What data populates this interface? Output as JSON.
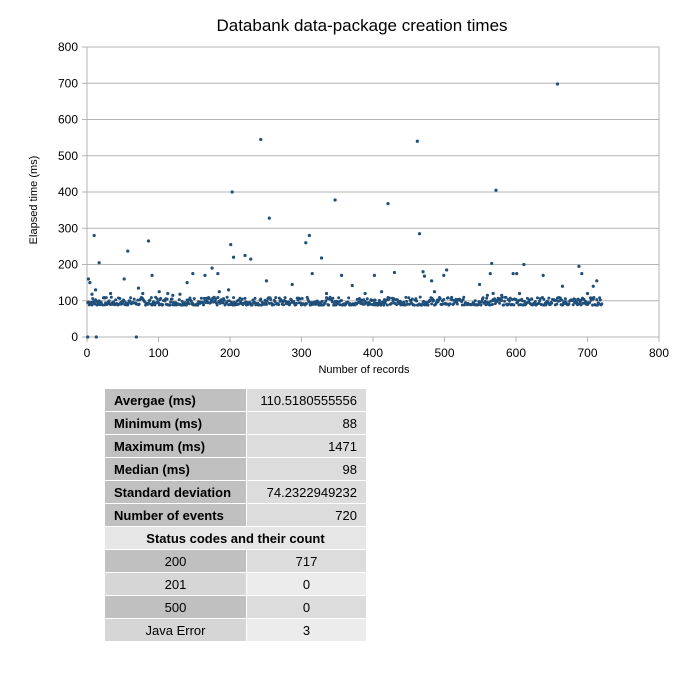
{
  "chart_data": {
    "type": "scatter",
    "title": "Databank data-package creation times",
    "xlabel": "Number of records",
    "ylabel": "Elapsed time (ms)",
    "xlim": [
      0,
      800
    ],
    "ylim": [
      0,
      800
    ],
    "xticks": [
      0,
      100,
      200,
      300,
      400,
      500,
      600,
      700,
      800
    ],
    "yticks": [
      0,
      100,
      200,
      300,
      400,
      500,
      600,
      700,
      800
    ],
    "grid": true,
    "legend": "none",
    "color": "#1f4e79",
    "baseline": {
      "x_range": [
        1,
        720
      ],
      "typical_ms": [
        88,
        110
      ]
    },
    "outliers": [
      [
        1,
        0
      ],
      [
        13,
        0
      ],
      [
        69,
        0
      ],
      [
        2,
        160
      ],
      [
        4,
        150
      ],
      [
        7,
        118
      ],
      [
        10,
        280
      ],
      [
        12,
        130
      ],
      [
        17,
        205
      ],
      [
        25,
        108
      ],
      [
        33,
        120
      ],
      [
        52,
        160
      ],
      [
        57,
        237
      ],
      [
        72,
        135
      ],
      [
        78,
        120
      ],
      [
        86,
        265
      ],
      [
        91,
        170
      ],
      [
        101,
        125
      ],
      [
        113,
        120
      ],
      [
        120,
        115
      ],
      [
        130,
        118
      ],
      [
        140,
        150
      ],
      [
        148,
        175
      ],
      [
        165,
        170
      ],
      [
        175,
        190
      ],
      [
        183,
        175
      ],
      [
        185,
        125
      ],
      [
        198,
        130
      ],
      [
        201,
        255
      ],
      [
        203,
        400
      ],
      [
        205,
        220
      ],
      [
        221,
        225
      ],
      [
        229,
        215
      ],
      [
        243,
        545
      ],
      [
        251,
        155
      ],
      [
        255,
        328
      ],
      [
        287,
        145
      ],
      [
        306,
        260
      ],
      [
        311,
        280
      ],
      [
        315,
        175
      ],
      [
        328,
        218
      ],
      [
        335,
        120
      ],
      [
        347,
        378
      ],
      [
        356,
        170
      ],
      [
        371,
        142
      ],
      [
        389,
        120
      ],
      [
        402,
        170
      ],
      [
        412,
        125
      ],
      [
        421,
        368
      ],
      [
        430,
        178
      ],
      [
        462,
        540
      ],
      [
        465,
        285
      ],
      [
        470,
        180
      ],
      [
        472,
        168
      ],
      [
        482,
        155
      ],
      [
        486,
        125
      ],
      [
        499,
        170
      ],
      [
        503,
        185
      ],
      [
        549,
        145
      ],
      [
        560,
        115
      ],
      [
        564,
        175
      ],
      [
        566,
        203
      ],
      [
        568,
        120
      ],
      [
        572,
        405
      ],
      [
        580,
        115
      ],
      [
        596,
        175
      ],
      [
        601,
        175
      ],
      [
        605,
        120
      ],
      [
        611,
        200
      ],
      [
        622,
        105
      ],
      [
        638,
        170
      ],
      [
        658,
        698
      ],
      [
        665,
        140
      ],
      [
        688,
        195
      ],
      [
        692,
        175
      ],
      [
        700,
        120
      ],
      [
        708,
        140
      ],
      [
        713,
        155
      ]
    ]
  },
  "stats": {
    "rows": [
      {
        "label": "Avergae (ms)",
        "value": "110.5180555556"
      },
      {
        "label": "Minimum (ms)",
        "value": "88"
      },
      {
        "label": "Maximum (ms)",
        "value": "1471"
      },
      {
        "label": "Median (ms)",
        "value": "98"
      },
      {
        "label": "Standard deviation",
        "value": "74.2322949232"
      },
      {
        "label": "Number of events",
        "value": "720"
      }
    ],
    "status_header": "Status codes and their count",
    "status_rows": [
      {
        "code": "200",
        "count": "717"
      },
      {
        "code": "201",
        "count": "0"
      },
      {
        "code": "500",
        "count": "0"
      },
      {
        "code": "Java Error",
        "count": "3"
      }
    ]
  }
}
